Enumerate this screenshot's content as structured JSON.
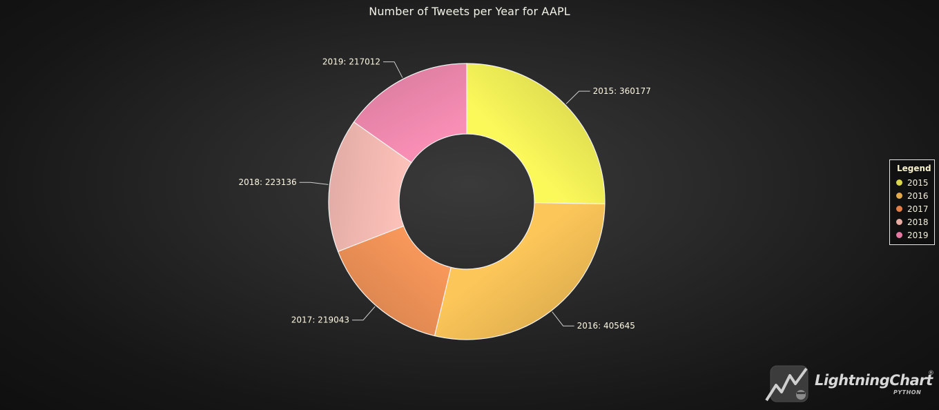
{
  "chart_data": {
    "type": "pie",
    "title": "Number of Tweets per Year for AAPL",
    "donut": true,
    "categories": [
      "2015",
      "2016",
      "2017",
      "2018",
      "2019"
    ],
    "values": [
      360177,
      405645,
      219043,
      223136,
      217012
    ],
    "slice_labels": [
      "2015: 360177",
      "2016: 405645",
      "2017: 219043",
      "2018: 223136",
      "2019: 217012"
    ],
    "colors": [
      "#fbf95a",
      "#fcc659",
      "#f7975a",
      "#fbc0b8",
      "#f98eb5"
    ],
    "legend": {
      "title": "Legend",
      "placement": "right",
      "items": [
        "2015",
        "2016",
        "2017",
        "2018",
        "2019"
      ],
      "swatch_colors": [
        "#d9d64a",
        "#e3a94a",
        "#e07f47",
        "#e7aba3",
        "#e478a1"
      ]
    }
  },
  "branding": {
    "name": "LightningChart",
    "registered_mark": "®",
    "sub": "PYTHON"
  }
}
